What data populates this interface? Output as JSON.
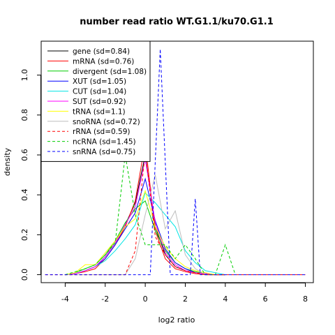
{
  "chart_data": {
    "type": "line",
    "title": "number read ratio WT.G1.1/ku70.G1.1",
    "xlabel": "log2 ratio",
    "ylabel": "density",
    "xlim": [
      -5.2,
      8.4
    ],
    "ylim": [
      -0.04,
      1.17
    ],
    "xticks": [
      "-4",
      "-2",
      "0",
      "2",
      "4",
      "6",
      "8"
    ],
    "yticks": [
      "0.0",
      "0.2",
      "0.4",
      "0.6",
      "0.8",
      "1.0"
    ],
    "legend_position": "top-left",
    "series": [
      {
        "name": "gene (sd=0.84)",
        "color": "#000000",
        "dash": false,
        "x": [
          -4,
          -3.5,
          -3,
          -2.5,
          -2,
          -1.5,
          -1,
          -0.5,
          0,
          0.5,
          1,
          1.5,
          2,
          2.5,
          3,
          3.5,
          4
        ],
        "y": [
          0,
          0.005,
          0.02,
          0.04,
          0.09,
          0.16,
          0.25,
          0.36,
          0.6,
          0.24,
          0.1,
          0.04,
          0.02,
          0.01,
          0.005,
          0,
          0
        ]
      },
      {
        "name": "mRNA (sd=0.76)",
        "color": "#ff0000",
        "dash": false,
        "x": [
          -4,
          -3.5,
          -3,
          -2.5,
          -2,
          -1.5,
          -1,
          -0.5,
          0,
          0.5,
          1,
          1.5,
          2,
          2.5,
          3,
          3.5,
          4
        ],
        "y": [
          0,
          0.005,
          0.015,
          0.03,
          0.08,
          0.15,
          0.24,
          0.37,
          0.66,
          0.22,
          0.08,
          0.03,
          0.015,
          0.005,
          0,
          0,
          0
        ]
      },
      {
        "name": "divergent (sd=1.08)",
        "color": "#00cd00",
        "dash": false,
        "x": [
          -4,
          -3.5,
          -3,
          -2.5,
          -2,
          -1.5,
          -1,
          -0.5,
          0,
          0.5,
          1,
          1.5,
          2,
          2.5,
          3,
          3.5,
          4
        ],
        "y": [
          0,
          0.01,
          0.03,
          0.05,
          0.1,
          0.17,
          0.26,
          0.33,
          0.37,
          0.22,
          0.12,
          0.06,
          0.03,
          0.015,
          0.005,
          0,
          0
        ]
      },
      {
        "name": "XUT (sd=1.05)",
        "color": "#0000ff",
        "dash": false,
        "x": [
          -4,
          -3.5,
          -3,
          -2.5,
          -2,
          -1.5,
          -1,
          -0.5,
          0,
          0.5,
          1,
          1.5,
          2,
          2.5,
          3,
          3.5,
          4
        ],
        "y": [
          0,
          0.005,
          0.02,
          0.04,
          0.08,
          0.15,
          0.23,
          0.31,
          0.48,
          0.27,
          0.13,
          0.06,
          0.03,
          0.01,
          0.005,
          0,
          0
        ]
      },
      {
        "name": "CUT (sd=1.04)",
        "color": "#00e5e5",
        "dash": false,
        "x": [
          -4,
          -3.5,
          -3,
          -2.5,
          -2,
          -1.5,
          -1,
          -0.5,
          0,
          0.5,
          1,
          1.5,
          2,
          2.5,
          3,
          3.5,
          4
        ],
        "y": [
          0,
          0.005,
          0.02,
          0.04,
          0.07,
          0.12,
          0.18,
          0.25,
          0.41,
          0.36,
          0.3,
          0.24,
          0.12,
          0.06,
          0.02,
          0.01,
          0
        ]
      },
      {
        "name": "SUT (sd=0.92)",
        "color": "#ff00ff",
        "dash": false,
        "x": [
          -4,
          -3.5,
          -3,
          -2.5,
          -2,
          -1.5,
          -1,
          -0.5,
          0,
          0.5,
          1,
          1.5,
          2,
          2.5,
          3,
          3.5,
          4
        ],
        "y": [
          0,
          0.005,
          0.02,
          0.04,
          0.09,
          0.16,
          0.25,
          0.34,
          0.58,
          0.26,
          0.11,
          0.05,
          0.02,
          0.01,
          0.005,
          0,
          0
        ]
      },
      {
        "name": "tRNA (sd=1.1)",
        "color": "#ffff00",
        "dash": false,
        "x": [
          -4,
          -3.5,
          -3,
          -2.5,
          -2,
          -1.5,
          -1,
          -0.5,
          0,
          0.5,
          1,
          1.5,
          2,
          2.5,
          3,
          3.5,
          4
        ],
        "y": [
          0,
          0.01,
          0.05,
          0.05,
          0.11,
          0.17,
          0.24,
          0.28,
          0.42,
          0.24,
          0.14,
          0.08,
          0.04,
          0.02,
          0.01,
          0,
          0
        ]
      },
      {
        "name": "snoRNA (sd=0.72)",
        "color": "#bebebe",
        "dash": false,
        "x": [
          -4,
          -3,
          -2,
          -1,
          -0.5,
          0,
          0.5,
          1,
          1.5,
          2,
          2.5,
          3,
          4
        ],
        "y": [
          0,
          0,
          0,
          0,
          0.08,
          0.3,
          0.5,
          0.23,
          0.32,
          0.1,
          0.03,
          0,
          0
        ]
      },
      {
        "name": "rRNA (sd=0.59)",
        "color": "#ff0000",
        "dash": true,
        "x": [
          -5,
          -3,
          -2,
          -1,
          -0.5,
          0,
          0.5,
          1,
          1.5,
          2,
          2.5,
          3,
          4,
          6,
          8
        ],
        "y": [
          0,
          0,
          0,
          0,
          0.12,
          0.62,
          0.19,
          0.1,
          0.04,
          0.02,
          0.01,
          0,
          0,
          0,
          0
        ]
      },
      {
        "name": "ncRNA (sd=1.45)",
        "color": "#00cd00",
        "dash": true,
        "x": [
          -4,
          -3,
          -2.5,
          -2,
          -1.5,
          -1,
          -0.5,
          0,
          0.5,
          1,
          1.5,
          2,
          2.5,
          3,
          3.5,
          4,
          4.5
        ],
        "y": [
          0,
          0.03,
          0.05,
          0.1,
          0.16,
          0.6,
          0.3,
          0.15,
          0.15,
          0.15,
          0.08,
          0.15,
          0.08,
          0,
          0,
          0.15,
          0
        ]
      },
      {
        "name": "snRNA (sd=0.75)",
        "color": "#0000ff",
        "dash": true,
        "x": [
          -5,
          -4,
          -3,
          -2,
          -1,
          -0.5,
          0,
          0.25,
          0.75,
          1.25,
          1.75,
          2.25,
          2.5,
          2.75,
          3,
          4,
          6,
          8
        ],
        "y": [
          0,
          0,
          0,
          0,
          0,
          0,
          0,
          0,
          1.13,
          0,
          0,
          0,
          0.38,
          0,
          0,
          0,
          0,
          0
        ]
      }
    ]
  }
}
